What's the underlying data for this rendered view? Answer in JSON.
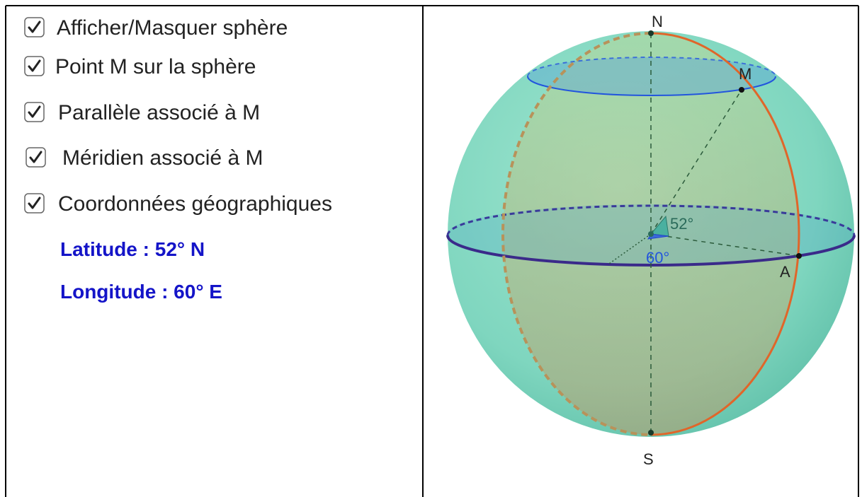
{
  "controls": [
    {
      "label": "Afficher/Masquer sphère",
      "checked": true
    },
    {
      "label": "Point M sur la sphère",
      "checked": true
    },
    {
      "label": "Parallèle associé à M",
      "checked": true
    },
    {
      "label": "Méridien associé à M",
      "checked": true
    },
    {
      "label": "Coordonnées géographiques",
      "checked": true
    }
  ],
  "coordinates": {
    "latitude": "Latitude : 52° N",
    "longitude": "Longitude : 60° E"
  },
  "figure": {
    "points": {
      "north": "N",
      "south": "S",
      "m": "M",
      "a": "A"
    },
    "angles": {
      "latitude": "52°",
      "longitude": "60°"
    }
  }
}
